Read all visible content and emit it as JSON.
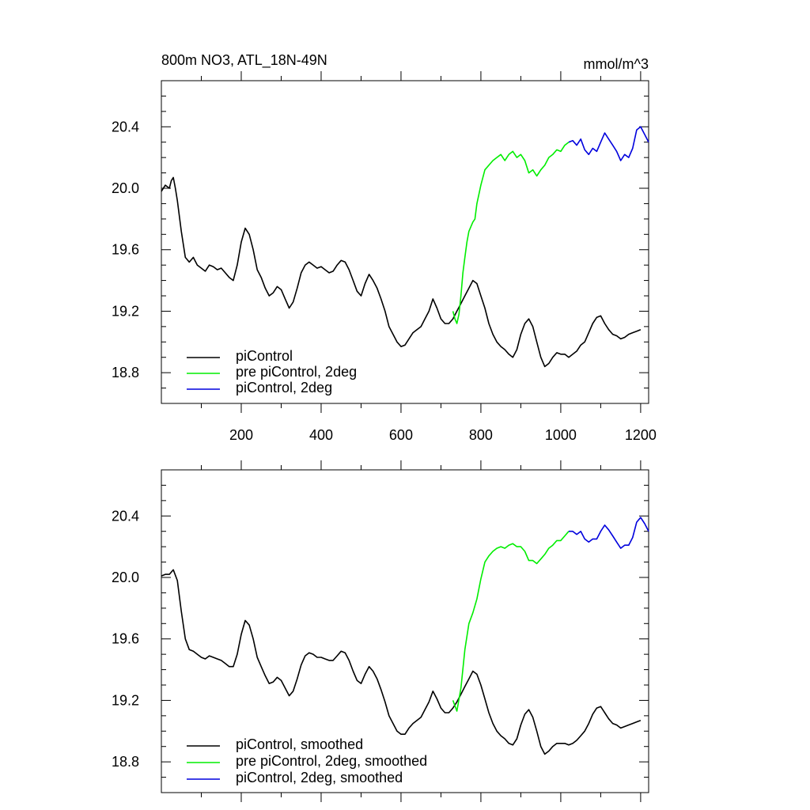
{
  "figure": {
    "title_left": "800m NO3, ATL_18N-49N",
    "title_right": "mmol/m^3"
  },
  "chart_data": [
    {
      "type": "line",
      "title": "800m NO3, ATL_18N-49N",
      "units": "mmol/m^3",
      "xlim": [
        0,
        1220
      ],
      "ylim": [
        18.6,
        20.7
      ],
      "x_ticks": [
        200,
        400,
        600,
        800,
        1000,
        1200
      ],
      "x_tick_labels": [
        "200",
        "400",
        "600",
        "800",
        "1000",
        "1200"
      ],
      "y_ticks": [
        18.8,
        19.2,
        19.6,
        20.0,
        20.4
      ],
      "y_tick_labels": [
        "18.8",
        "19.2",
        "19.6",
        "20.0",
        "20.4"
      ],
      "legend_position": "bottom-left",
      "grid": false,
      "series": [
        {
          "name": "piControl",
          "color": "#000000",
          "x": [
            0,
            10,
            20,
            25,
            30,
            35,
            40,
            50,
            60,
            70,
            80,
            90,
            100,
            110,
            120,
            130,
            140,
            150,
            160,
            170,
            180,
            190,
            200,
            210,
            220,
            230,
            240,
            250,
            260,
            270,
            280,
            290,
            300,
            310,
            320,
            330,
            340,
            350,
            360,
            370,
            380,
            390,
            400,
            410,
            420,
            430,
            440,
            450,
            460,
            470,
            480,
            490,
            500,
            510,
            520,
            530,
            540,
            550,
            560,
            570,
            580,
            590,
            600,
            610,
            620,
            630,
            640,
            650,
            660,
            670,
            680,
            690,
            700,
            710,
            720,
            730,
            740,
            750,
            760,
            770,
            780,
            790,
            800,
            810,
            820,
            830,
            840,
            850,
            860,
            870,
            880,
            890,
            900,
            910,
            920,
            930,
            940,
            950,
            960,
            970,
            980,
            990,
            1000,
            1010,
            1020,
            1030,
            1040,
            1050,
            1060,
            1070,
            1080,
            1090,
            1100,
            1110,
            1120,
            1130,
            1140,
            1150,
            1160,
            1170,
            1180,
            1190,
            1200
          ],
          "y": [
            19.98,
            20.02,
            20.0,
            20.05,
            20.07,
            20.0,
            19.92,
            19.72,
            19.55,
            19.52,
            19.55,
            19.5,
            19.48,
            19.46,
            19.5,
            19.49,
            19.47,
            19.48,
            19.45,
            19.42,
            19.4,
            19.5,
            19.65,
            19.74,
            19.7,
            19.6,
            19.47,
            19.42,
            19.35,
            19.3,
            19.32,
            19.36,
            19.34,
            19.28,
            19.22,
            19.26,
            19.35,
            19.45,
            19.5,
            19.52,
            19.5,
            19.48,
            19.49,
            19.47,
            19.45,
            19.46,
            19.5,
            19.53,
            19.52,
            19.47,
            19.4,
            19.33,
            19.3,
            19.38,
            19.44,
            19.4,
            19.35,
            19.28,
            19.2,
            19.1,
            19.05,
            19.0,
            18.97,
            18.98,
            19.02,
            19.06,
            19.08,
            19.1,
            19.15,
            19.2,
            19.28,
            19.22,
            19.15,
            19.12,
            19.12,
            19.15,
            19.2,
            19.25,
            19.3,
            19.35,
            19.4,
            19.38,
            19.3,
            19.22,
            19.12,
            19.05,
            19.0,
            18.97,
            18.95,
            18.92,
            18.9,
            18.95,
            19.05,
            19.12,
            19.15,
            19.1,
            19.0,
            18.9,
            18.84,
            18.86,
            18.9,
            18.93,
            18.92,
            18.92,
            18.9,
            18.92,
            18.94,
            18.98,
            19.0,
            19.06,
            19.12,
            19.16,
            19.17,
            19.12,
            19.08,
            19.05,
            19.04,
            19.02,
            19.03,
            19.05,
            19.06,
            19.07,
            19.08
          ]
        },
        {
          "name": "pre piControl, 2deg",
          "color": "#00ee00",
          "x": [
            730,
            735,
            740,
            745,
            750,
            755,
            760,
            765,
            770,
            775,
            780,
            785,
            790,
            795,
            800,
            810,
            820,
            830,
            840,
            850,
            860,
            870,
            880,
            890,
            900,
            910,
            920,
            930,
            940,
            950,
            960,
            970,
            980,
            990,
            1000,
            1010,
            1020
          ],
          "y": [
            19.2,
            19.15,
            19.12,
            19.18,
            19.3,
            19.45,
            19.55,
            19.65,
            19.72,
            19.75,
            19.78,
            19.8,
            19.9,
            19.96,
            20.02,
            20.12,
            20.15,
            20.18,
            20.2,
            20.22,
            20.18,
            20.22,
            20.24,
            20.2,
            20.22,
            20.18,
            20.1,
            20.12,
            20.08,
            20.12,
            20.15,
            20.2,
            20.22,
            20.25,
            20.24,
            20.28,
            20.3
          ]
        },
        {
          "name": "piControl, 2deg",
          "color": "#0000dd",
          "x": [
            1020,
            1030,
            1040,
            1050,
            1060,
            1070,
            1080,
            1090,
            1100,
            1110,
            1120,
            1130,
            1140,
            1150,
            1160,
            1170,
            1180,
            1190,
            1200,
            1210,
            1220
          ],
          "y": [
            20.3,
            20.31,
            20.28,
            20.32,
            20.25,
            20.22,
            20.26,
            20.24,
            20.3,
            20.36,
            20.32,
            20.28,
            20.24,
            20.18,
            20.22,
            20.2,
            20.26,
            20.38,
            20.4,
            20.35,
            20.3
          ]
        }
      ]
    },
    {
      "type": "line",
      "xlim": [
        0,
        1220
      ],
      "ylim": [
        18.6,
        20.7
      ],
      "y_ticks": [
        18.8,
        19.2,
        19.6,
        20.0,
        20.4
      ],
      "y_tick_labels": [
        "18.8",
        "19.2",
        "19.6",
        "20.0",
        "20.4"
      ],
      "legend_position": "bottom-left",
      "grid": false,
      "series": [
        {
          "name": "piControl, smoothed",
          "color": "#000000",
          "x": [
            0,
            10,
            20,
            30,
            40,
            50,
            60,
            70,
            80,
            90,
            100,
            110,
            120,
            130,
            140,
            150,
            160,
            170,
            180,
            190,
            200,
            210,
            220,
            230,
            240,
            250,
            260,
            270,
            280,
            290,
            300,
            310,
            320,
            330,
            340,
            350,
            360,
            370,
            380,
            390,
            400,
            410,
            420,
            430,
            440,
            450,
            460,
            470,
            480,
            490,
            500,
            510,
            520,
            530,
            540,
            550,
            560,
            570,
            580,
            590,
            600,
            610,
            620,
            630,
            640,
            650,
            660,
            670,
            680,
            690,
            700,
            710,
            720,
            730,
            740,
            750,
            760,
            770,
            780,
            790,
            800,
            810,
            820,
            830,
            840,
            850,
            860,
            870,
            880,
            890,
            900,
            910,
            920,
            930,
            940,
            950,
            960,
            970,
            980,
            990,
            1000,
            1010,
            1020,
            1030,
            1040,
            1050,
            1060,
            1070,
            1080,
            1090,
            1100,
            1110,
            1120,
            1130,
            1140,
            1150,
            1160,
            1170,
            1180,
            1190,
            1200
          ],
          "y": [
            20.01,
            20.02,
            20.02,
            20.05,
            19.98,
            19.78,
            19.6,
            19.53,
            19.52,
            19.5,
            19.48,
            19.47,
            19.49,
            19.48,
            19.47,
            19.46,
            19.44,
            19.42,
            19.42,
            19.5,
            19.63,
            19.72,
            19.69,
            19.6,
            19.48,
            19.42,
            19.36,
            19.31,
            19.32,
            19.35,
            19.33,
            19.28,
            19.23,
            19.26,
            19.34,
            19.43,
            19.49,
            19.51,
            19.5,
            19.48,
            19.48,
            19.47,
            19.46,
            19.46,
            19.49,
            19.52,
            19.51,
            19.46,
            19.39,
            19.33,
            19.31,
            19.37,
            19.42,
            19.39,
            19.34,
            19.27,
            19.19,
            19.1,
            19.05,
            19.0,
            18.98,
            18.98,
            19.02,
            19.05,
            19.07,
            19.09,
            19.14,
            19.19,
            19.26,
            19.21,
            19.15,
            19.12,
            19.12,
            19.15,
            19.19,
            19.24,
            19.29,
            19.34,
            19.39,
            19.37,
            19.3,
            19.21,
            19.12,
            19.05,
            19.0,
            18.97,
            18.95,
            18.92,
            18.91,
            18.95,
            19.04,
            19.11,
            19.14,
            19.09,
            19.0,
            18.9,
            18.85,
            18.87,
            18.9,
            18.92,
            18.92,
            18.92,
            18.91,
            18.92,
            18.94,
            18.97,
            19.0,
            19.05,
            19.11,
            19.15,
            19.16,
            19.12,
            19.08,
            19.05,
            19.04,
            19.02,
            19.03,
            19.04,
            19.05,
            19.06,
            19.07
          ]
        },
        {
          "name": "pre piControl, 2deg, smoothed",
          "color": "#00ee00",
          "x": [
            730,
            740,
            750,
            760,
            770,
            780,
            790,
            800,
            810,
            820,
            830,
            840,
            850,
            860,
            870,
            880,
            890,
            900,
            910,
            920,
            930,
            940,
            950,
            960,
            970,
            980,
            990,
            1000,
            1010,
            1020
          ],
          "y": [
            19.2,
            19.13,
            19.28,
            19.53,
            19.7,
            19.77,
            19.86,
            19.99,
            20.1,
            20.14,
            20.17,
            20.19,
            20.2,
            20.19,
            20.21,
            20.22,
            20.2,
            20.2,
            20.17,
            20.11,
            20.11,
            20.09,
            20.12,
            20.15,
            20.19,
            20.21,
            20.24,
            20.24,
            20.27,
            20.3
          ]
        },
        {
          "name": "piControl, 2deg, smoothed",
          "color": "#0000dd",
          "x": [
            1020,
            1030,
            1040,
            1050,
            1060,
            1070,
            1080,
            1090,
            1100,
            1110,
            1120,
            1130,
            1140,
            1150,
            1160,
            1170,
            1180,
            1190,
            1200,
            1210,
            1220
          ],
          "y": [
            20.3,
            20.3,
            20.28,
            20.3,
            20.25,
            20.23,
            20.25,
            20.25,
            20.3,
            20.34,
            20.31,
            20.27,
            20.23,
            20.19,
            20.21,
            20.21,
            20.26,
            20.36,
            20.39,
            20.35,
            20.3
          ]
        }
      ]
    }
  ]
}
